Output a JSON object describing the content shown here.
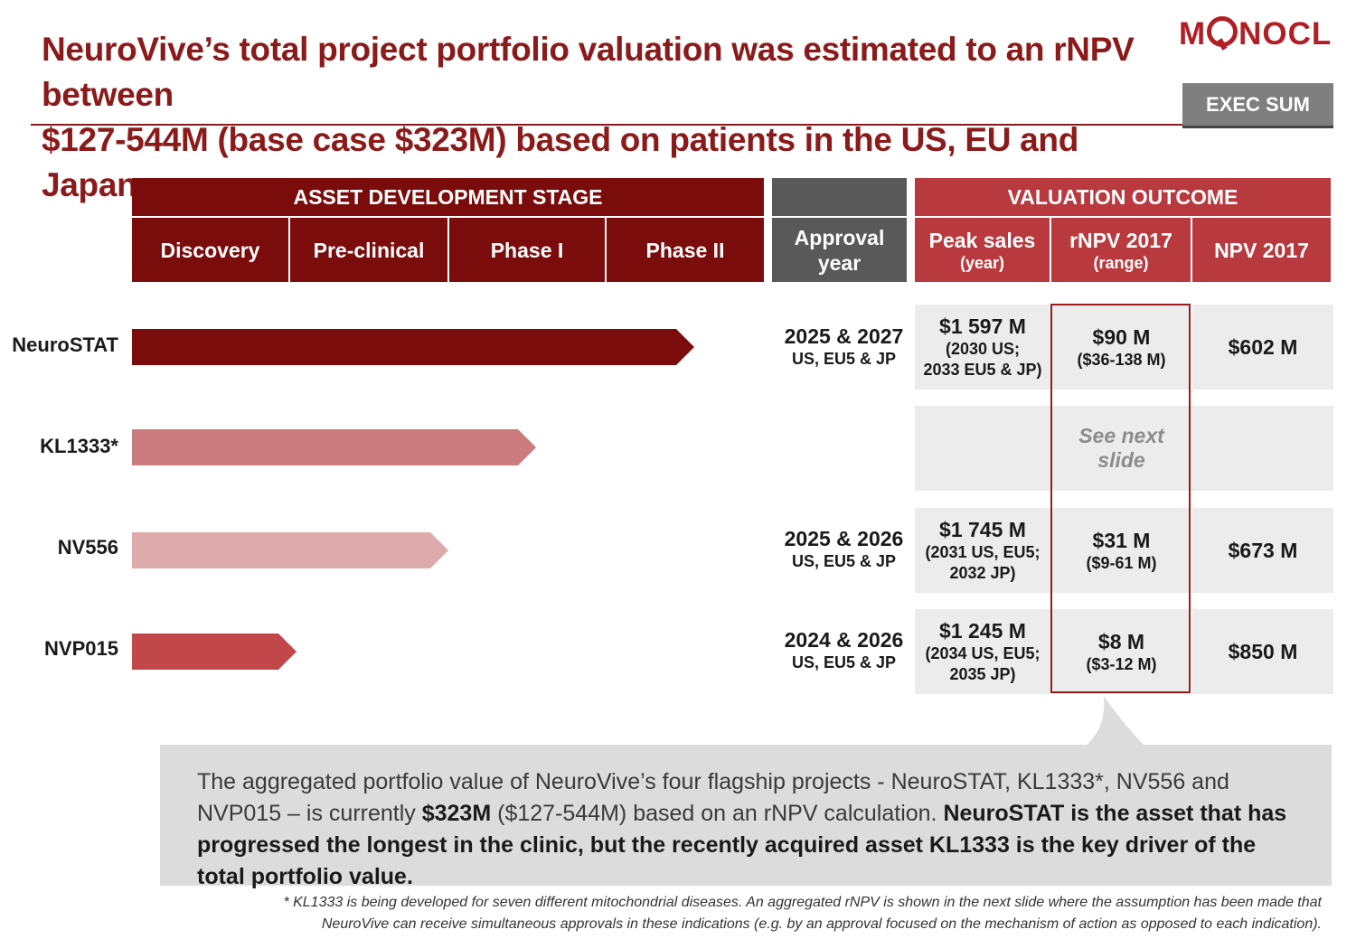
{
  "title": {
    "line1": "NeuroVive’s total project portfolio valuation was estimated to an rNPV between",
    "line2": "$127-544M (base case $323M) based on patients in the US, EU and Japan"
  },
  "logo": {
    "before": "M",
    "after": "NOCL"
  },
  "exec_sum": "EXEC SUM",
  "headers": {
    "asset_stage": "ASSET DEVELOPMENT STAGE",
    "stages": [
      "Discovery",
      "Pre-clinical",
      "Phase I",
      "Phase II"
    ],
    "approval": {
      "line1": "Approval",
      "line2": "year"
    },
    "valuation": "VALUATION OUTCOME",
    "peak_sales": {
      "main": "Peak sales",
      "sub": "(year)"
    },
    "rnpv": {
      "main": "rNPV 2017",
      "sub": "(range)"
    },
    "npv": "NPV 2017"
  },
  "assets": [
    {
      "name": "NeuroSTAT",
      "stage_progress": 0.89,
      "color": "#7b0c0c",
      "approval": "2025 & 2027",
      "approval_regions": "US, EU5 & JP",
      "peak_sales": "$1 597 M",
      "peak_year1": "(2030 US;",
      "peak_year2": "2033 EU5 & JP)",
      "rnpv": "$90 M",
      "rnpv_range": "($36-138 M)",
      "npv": "$602 M"
    },
    {
      "name": "KL1333*",
      "stage_progress": 0.64,
      "color": "#c97b7d",
      "see_next": "See next slide"
    },
    {
      "name": "NV556",
      "stage_progress": 0.5,
      "color": "#ddabac",
      "approval": "2025 & 2026",
      "approval_regions": "US, EU5 & JP",
      "peak_sales": "$1 745 M",
      "peak_year1": "(2031 US, EU5;",
      "peak_year2": "2032  JP)",
      "rnpv": "$31 M",
      "rnpv_range": "($9-61 M)",
      "npv": "$673 M"
    },
    {
      "name": "NVP015",
      "stage_progress": 0.26,
      "color": "#c2474b",
      "approval": "2024 & 2026",
      "approval_regions": "US, EU5 & JP",
      "peak_sales": "$1 245 M",
      "peak_year1": "(2034 US, EU5;",
      "peak_year2": "2035 JP)",
      "rnpv": "$8 M",
      "rnpv_range": "($3-12 M)",
      "npv": "$850 M"
    }
  ],
  "summary": {
    "part1": "The aggregated portfolio value of NeuroVive’s four flagship projects - NeuroSTAT, KL1333*, NV556 and NVP015 – is currently ",
    "bold1": "$323M",
    "part2": " ($127-544M) based on an rNPV calculation. ",
    "bold2": "NeuroSTAT is the asset that has progressed the longest in the clinic, but the recently acquired asset KL1333 is the key driver of the total portfolio value."
  },
  "footnote": {
    "line1": "* KL1333 is being developed for seven different mitochondrial diseases. An aggregated rNPV is shown in the next slide where the assumption has been made that",
    "line2": "NeuroVive can receive simultaneous approvals in these indications (e.g. by an approval focused on the mechanism of action as opposed to each indication)."
  }
}
